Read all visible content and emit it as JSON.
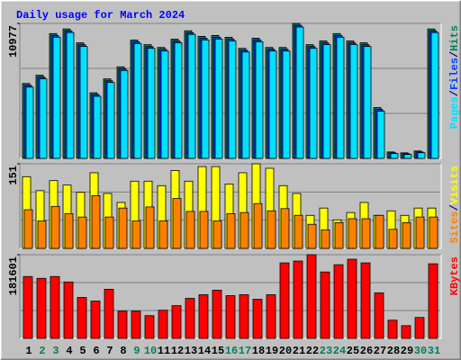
{
  "title": "Daily usage for March 2024",
  "legend_separator": "/",
  "chart_data": [
    {
      "type": "bar",
      "ylim": [
        0,
        10977
      ],
      "yticks": [
        10977
      ],
      "series": [
        {
          "name": "Hits",
          "color": "#00805c",
          "values": [
            6090,
            6766,
            10149,
            10525,
            9398,
            5338,
            6466,
            7443,
            9623,
            9247,
            9022,
            9698,
            10375,
            9924,
            9999,
            9849,
            8946,
            9773,
            9022,
            9022,
            10977,
            9247,
            9548,
            10149,
            9548,
            9398,
            4135,
            526,
            451,
            601,
            10525
          ]
        },
        {
          "name": "Files",
          "color": "#0040ff",
          "values": [
            5940,
            6610,
            9990,
            10370,
            9240,
            5190,
            6310,
            7290,
            9470,
            9090,
            8870,
            9540,
            10220,
            9770,
            9840,
            9690,
            8790,
            9620,
            8870,
            8870,
            10820,
            9090,
            9390,
            9990,
            9390,
            9240,
            3980,
            450,
            380,
            520,
            10370
          ]
        },
        {
          "name": "Pages",
          "color": "#00e0ff",
          "values": [
            5800,
            6470,
            9850,
            10230,
            9100,
            5050,
            6170,
            7150,
            9330,
            8950,
            8730,
            9400,
            10080,
            9630,
            9700,
            9550,
            8650,
            9480,
            8730,
            8730,
            10680,
            8950,
            9250,
            9850,
            9250,
            9100,
            3840,
            390,
            320,
            460,
            10230
          ]
        }
      ]
    },
    {
      "type": "bar",
      "ylim": [
        0,
        151
      ],
      "yticks": [
        151
      ],
      "series": [
        {
          "name": "Visits",
          "color": "#ffff00",
          "values": [
            128,
            103,
            121,
            113,
            100,
            135,
            98,
            82,
            120,
            120,
            112,
            139,
            120,
            146,
            146,
            115,
            135,
            151,
            143,
            112,
            98,
            59,
            72,
            51,
            64,
            82,
            59,
            67,
            59,
            72,
            72
          ]
        },
        {
          "name": "Sites",
          "color": "#ff8000",
          "values": [
            69,
            49,
            75,
            62,
            56,
            94,
            56,
            72,
            49,
            74,
            49,
            89,
            66,
            66,
            49,
            62,
            64,
            80,
            67,
            71,
            59,
            43,
            33,
            46,
            53,
            53,
            59,
            34,
            46,
            56,
            56
          ]
        }
      ]
    },
    {
      "type": "bar",
      "ylim": [
        0,
        181601
      ],
      "yticks": [
        181601
      ],
      "categories": [
        "1",
        "2",
        "3",
        "4",
        "5",
        "6",
        "7",
        "8",
        "9",
        "10",
        "11",
        "12",
        "13",
        "14",
        "15",
        "16",
        "17",
        "18",
        "19",
        "20",
        "21",
        "22",
        "23",
        "24",
        "25",
        "26",
        "27",
        "28",
        "29",
        "30",
        "31"
      ],
      "category_colors": [
        "#000000",
        "#00805c",
        "#00805c",
        "#000000",
        "#000000",
        "#000000",
        "#000000",
        "#000000",
        "#00805c",
        "#00805c",
        "#000000",
        "#000000",
        "#000000",
        "#000000",
        "#000000",
        "#00805c",
        "#00805c",
        "#000000",
        "#000000",
        "#000000",
        "#000000",
        "#000000",
        "#00805c",
        "#00805c",
        "#000000",
        "#000000",
        "#000000",
        "#000000",
        "#000000",
        "#00805c",
        "#00805c"
      ],
      "series": [
        {
          "name": "KBytes",
          "color": "#ff0000",
          "values": [
            134232,
            130284,
            134232,
            122388,
            88830,
            80934,
            106596,
            59220,
            59220,
            49350,
            61194,
            71064,
            86856,
            94752,
            104622,
            92778,
            94752,
            84882,
            94752,
            163842,
            167790,
            181601,
            144102,
            159894,
            171738,
            163842,
            98700,
            39480,
            27636,
            45402,
            161868
          ]
        }
      ]
    }
  ]
}
